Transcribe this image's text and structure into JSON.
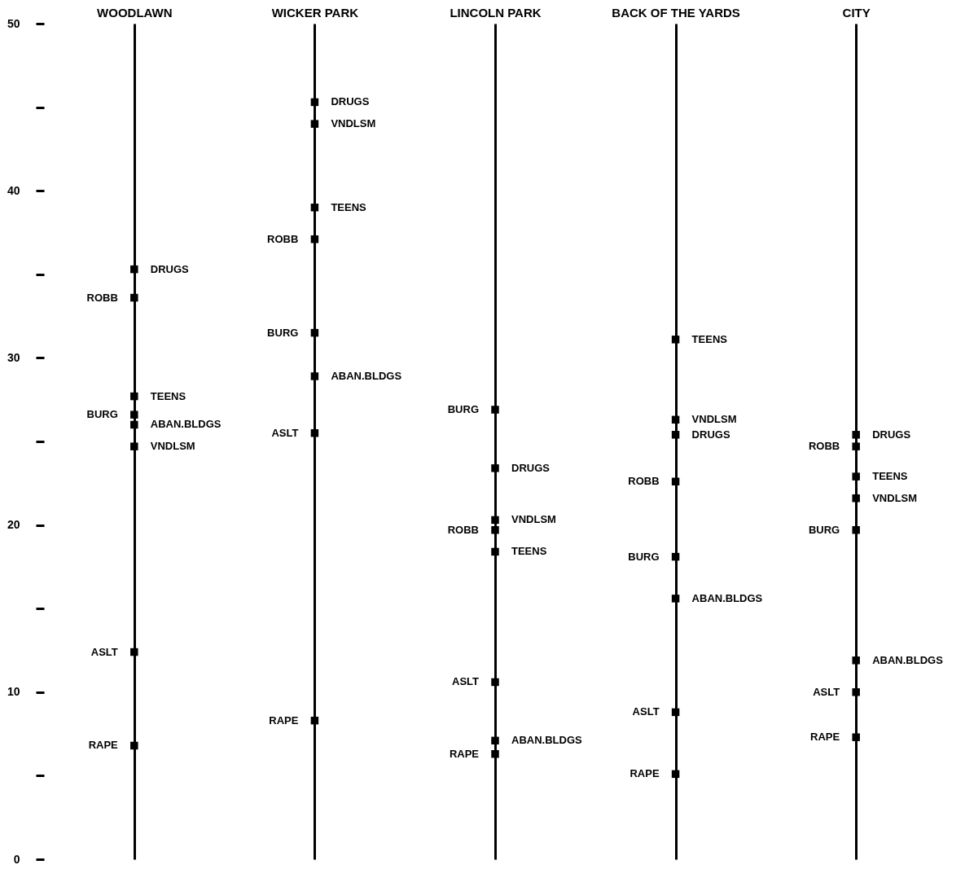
{
  "chart_data": {
    "type": "scatter",
    "categories": [
      "WOODLAWN",
      "WICKER PARK",
      "LINCOLN PARK",
      "BACK OF THE YARDS",
      "CITY"
    ],
    "series": [
      {
        "name": "DRUGS",
        "color": "#000000",
        "values": [
          35.3,
          45.3,
          23.4,
          25.4,
          25.4
        ]
      },
      {
        "name": "VNDLSM",
        "color": "#000000",
        "values": [
          24.7,
          44.0,
          20.3,
          26.3,
          21.6
        ]
      },
      {
        "name": "TEENS",
        "color": "#000000",
        "values": [
          27.7,
          39.0,
          18.4,
          31.1,
          22.9
        ]
      },
      {
        "name": "ABAN.BLDGS",
        "color": "#000000",
        "values": [
          26.0,
          28.9,
          7.1,
          15.6,
          11.9
        ]
      },
      {
        "name": "ROBB",
        "color": "#000000",
        "values": [
          33.6,
          37.1,
          19.7,
          22.6,
          24.7
        ]
      },
      {
        "name": "BURG",
        "color": "#000000",
        "values": [
          26.6,
          31.5,
          26.9,
          18.1,
          19.7
        ]
      },
      {
        "name": "ASLT",
        "color": "#000000",
        "values": [
          12.4,
          25.5,
          10.6,
          8.8,
          10.0
        ]
      },
      {
        "name": "RAPE",
        "color": "#000000",
        "values": [
          6.8,
          8.3,
          6.3,
          5.1,
          7.3
        ]
      }
    ],
    "ylim": [
      0,
      50
    ],
    "yticks": [
      0,
      {
        "value": 5,
        "label": null
      },
      10,
      {
        "value": 15,
        "label": null
      },
      20,
      {
        "value": 25,
        "label": null
      },
      30,
      {
        "value": 35,
        "label": null
      },
      40,
      {
        "value": 45,
        "label": null
      },
      50
    ],
    "tick_labels": "xy",
    "grid": "x",
    "legend": false,
    "marker": "square"
  }
}
